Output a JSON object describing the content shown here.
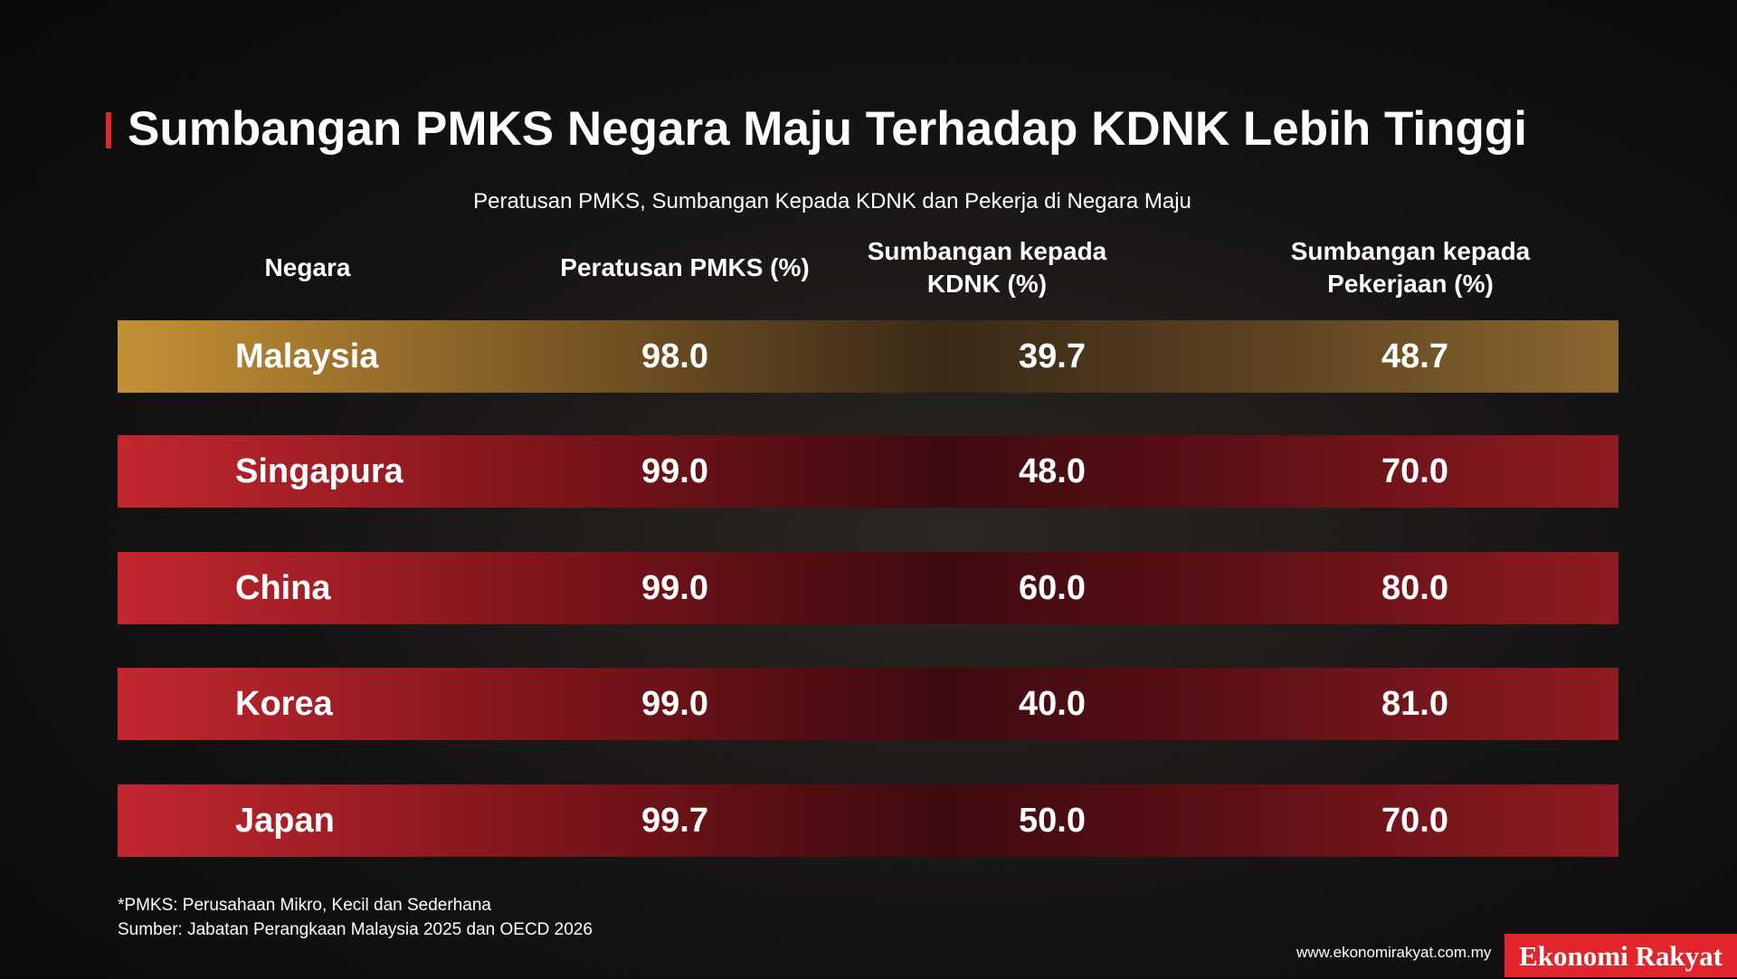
{
  "header": {
    "title": "Sumbangan PMKS Negara Maju Terhadap KDNK Lebih Tinggi",
    "subtitle": "Peratusan PMKS, Sumbangan Kepada KDNK dan Pekerja di Negara Maju"
  },
  "table": {
    "columns": [
      "Negara",
      "Peratusan PMKS (%)",
      "Sumbangan kepada KDNK (%)",
      "Sumbangan kepada Pekerjaan (%)"
    ],
    "rows": [
      [
        "Malaysia",
        "98.0",
        "39.7",
        "48.7"
      ],
      [
        "Singapura",
        "99.0",
        "48.0",
        "70.0"
      ],
      [
        "China",
        "99.0",
        "60.0",
        "80.0"
      ],
      [
        "Korea",
        "99.0",
        "40.0",
        "81.0"
      ],
      [
        "Japan",
        "99.7",
        "50.0",
        "70.0"
      ]
    ]
  },
  "footer": {
    "note": "*PMKS: Perusahaan Mikro, Kecil dan Sederhana",
    "source": "Sumber: Jabatan Perangkaan Malaysia 2025 dan OECD 2026",
    "website": "www.ekonomirakyat.com.my",
    "brand": "Ekonomi Rakyat"
  }
}
